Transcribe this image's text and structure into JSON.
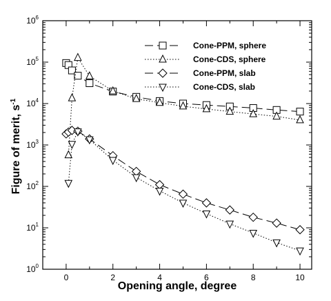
{
  "chart_data": {
    "type": "line",
    "title": "",
    "xlabel": "Opening angle, degree",
    "ylabel": "Figure of merit, s",
    "ylabel_superscript": "-1",
    "xlim": [
      -1,
      10.5
    ],
    "ylim": [
      1,
      1000000
    ],
    "yscale": "log",
    "grid": false,
    "legend_position": "top-right",
    "x_ticks": [
      0,
      2,
      4,
      6,
      8,
      10
    ],
    "y_ticks": [
      {
        "base": "10",
        "exp": "0",
        "value": 1
      },
      {
        "base": "10",
        "exp": "1",
        "value": 10
      },
      {
        "base": "10",
        "exp": "2",
        "value": 100
      },
      {
        "base": "10",
        "exp": "3",
        "value": 1000
      },
      {
        "base": "10",
        "exp": "4",
        "value": 10000
      },
      {
        "base": "10",
        "exp": "5",
        "value": 100000
      },
      {
        "base": "10",
        "exp": "6",
        "value": 1000000
      }
    ],
    "series": [
      {
        "name": "Cone-PPM, sphere",
        "marker": "square",
        "dash": "long",
        "x": [
          0,
          0.1,
          0.25,
          0.5,
          1,
          2,
          3,
          4,
          5,
          6,
          7,
          8,
          9,
          10
        ],
        "y": [
          95000,
          85000,
          63000,
          47000,
          31000,
          19500,
          14500,
          11500,
          10000,
          9200,
          8500,
          7800,
          7000,
          6400
        ]
      },
      {
        "name": "Cone-CDS, sphere",
        "marker": "triangle-up",
        "dash": "dotted",
        "x": [
          0.1,
          0.25,
          0.5,
          1,
          2,
          3,
          4,
          5,
          6,
          7,
          8,
          9,
          10
        ],
        "y": [
          570,
          13500,
          128000,
          46000,
          20000,
          13000,
          10500,
          8600,
          7400,
          6400,
          5600,
          4900,
          4000
        ]
      },
      {
        "name": "Cone-PPM, slab",
        "marker": "diamond",
        "dash": "long",
        "x": [
          0,
          0.1,
          0.25,
          0.5,
          1,
          2,
          3,
          4,
          5,
          6,
          7,
          8,
          9,
          10
        ],
        "y": [
          1850,
          2050,
          2250,
          2150,
          1400,
          550,
          230,
          110,
          65,
          40,
          27,
          18,
          13,
          9
        ]
      },
      {
        "name": "Cone-CDS, slab",
        "marker": "triangle-down",
        "dash": "dotted",
        "x": [
          0.1,
          0.25,
          0.5,
          1,
          2,
          3,
          4,
          5,
          6,
          7,
          8,
          9,
          10
        ],
        "y": [
          120,
          1050,
          2100,
          1350,
          430,
          165,
          78,
          40,
          22,
          12.5,
          7.5,
          4.4,
          2.8
        ]
      }
    ]
  }
}
